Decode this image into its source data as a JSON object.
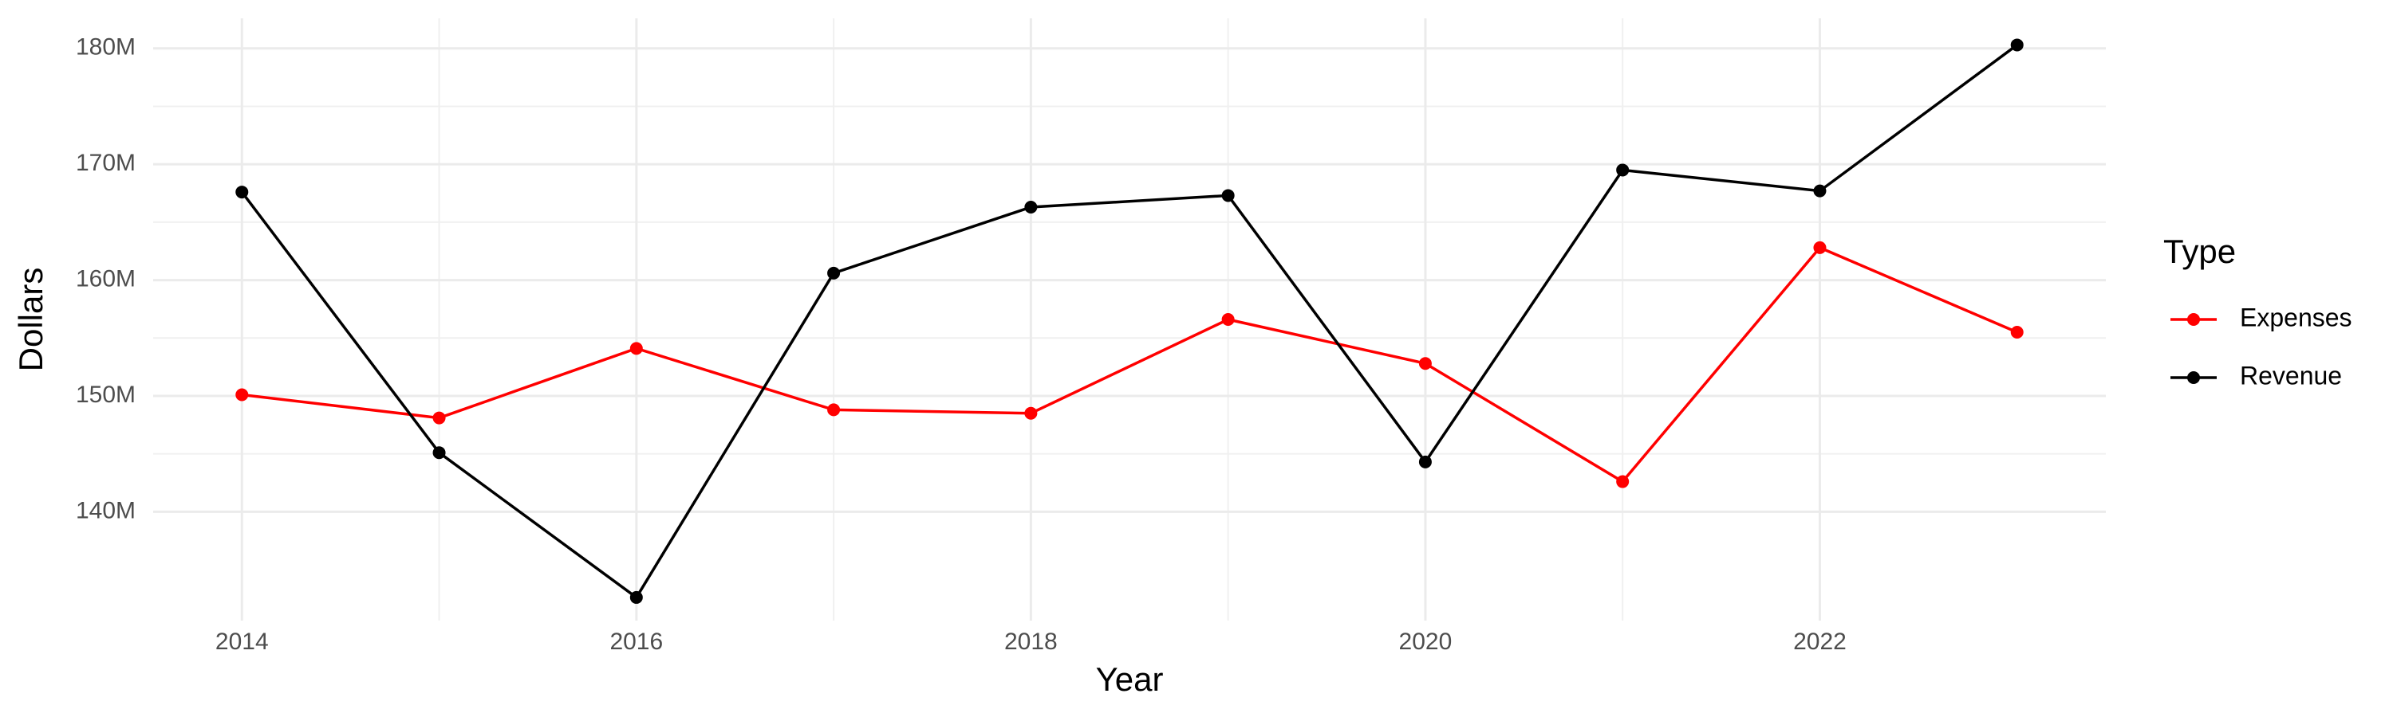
{
  "chart_data": {
    "type": "line",
    "x_label": "Year",
    "y_label": "Dollars",
    "legend_title": "Type",
    "x": [
      2014,
      2015,
      2016,
      2017,
      2018,
      2019,
      2020,
      2021,
      2022,
      2023
    ],
    "series": [
      {
        "name": "Expenses",
        "color": "#ff0000",
        "values": [
          150100000,
          148100000,
          154100000,
          148800000,
          148500000,
          156600000,
          152800000,
          142600000,
          162800000,
          155500000
        ]
      },
      {
        "name": "Revenue",
        "color": "#000000",
        "values": [
          167600000,
          145100000,
          132600000,
          160600000,
          166300000,
          167300000,
          144300000,
          169500000,
          167700000,
          180300000
        ]
      }
    ],
    "xlim": [
      2013.55,
      2023.45
    ],
    "xticks": [
      2014,
      2016,
      2018,
      2020,
      2022
    ],
    "ylim": [
      130600000,
      182600000
    ],
    "yticks": [
      {
        "value": 140000000,
        "label": "140M"
      },
      {
        "value": 150000000,
        "label": "150M"
      },
      {
        "value": 160000000,
        "label": "160M"
      },
      {
        "value": 170000000,
        "label": "170M"
      },
      {
        "value": 180000000,
        "label": "180M"
      }
    ],
    "grid": true,
    "legend": "right"
  }
}
